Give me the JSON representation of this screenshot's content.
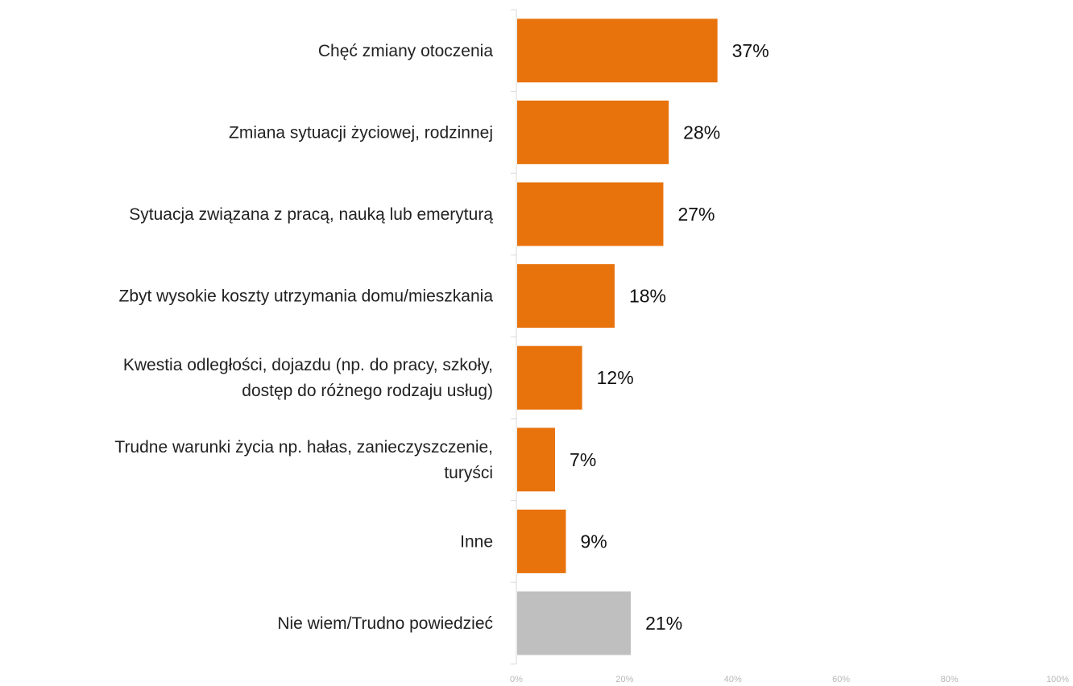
{
  "chart_data": {
    "type": "bar",
    "orientation": "horizontal",
    "categories": [
      [
        "Chęć zmiany otoczenia"
      ],
      [
        "Zmiana sytuacji życiowej, rodzinnej"
      ],
      [
        "Sytuacja związana z pracą, nauką lub emeryturą"
      ],
      [
        "Zbyt wysokie koszty utrzymania domu/mieszkania"
      ],
      [
        "Kwestia odległości, dojazdu (np. do pracy, szkoły,",
        "dostęp do różnego rodzaju usług)"
      ],
      [
        "Trudne warunki życia np. hałas, zanieczyszczenie,",
        "turyści"
      ],
      [
        "Inne"
      ],
      [
        "Nie wiem/Trudno powiedzieć"
      ]
    ],
    "values": [
      37,
      28,
      27,
      18,
      12,
      7,
      9,
      21
    ],
    "value_labels": [
      "37%",
      "28%",
      "27%",
      "18%",
      "12%",
      "7%",
      "9%",
      "21%"
    ],
    "bar_colors": [
      "#E8730C",
      "#E8730C",
      "#E8730C",
      "#E8730C",
      "#E8730C",
      "#E8730C",
      "#E8730C",
      "#BFBFBF"
    ],
    "xlim": [
      0,
      100
    ],
    "xticks": [
      "0%",
      "20%",
      "40%",
      "60%",
      "80%",
      "100%"
    ],
    "grid": false,
    "title": "",
    "xlabel": "",
    "ylabel": ""
  }
}
